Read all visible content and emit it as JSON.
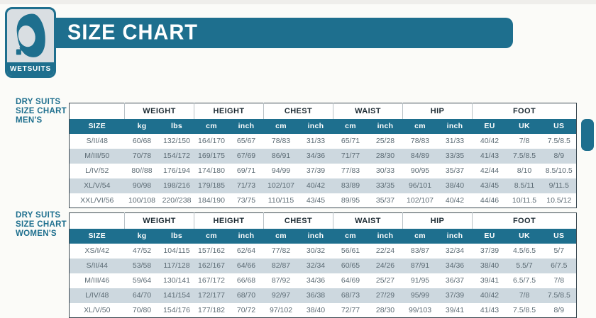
{
  "header": {
    "title": "SIZE CHART",
    "logo_label": "WETSUITS",
    "logo_icon": "wetsuit-hood-icon"
  },
  "colors": {
    "teal": "#1e6f8e",
    "row_alt": "#cdd8df",
    "data_text": "#5c6b74",
    "background": "#fbfbf8"
  },
  "tables": [
    {
      "id": "mens",
      "section_label_lines": [
        "DRY SUITS",
        "SIZE CHART",
        "MEN'S"
      ],
      "column_groups": [
        {
          "label": "",
          "span": 1
        },
        {
          "label": "WEIGHT",
          "span": 2
        },
        {
          "label": "HEIGHT",
          "span": 2
        },
        {
          "label": "CHEST",
          "span": 2
        },
        {
          "label": "WAIST",
          "span": 2
        },
        {
          "label": "HIP",
          "span": 2
        },
        {
          "label": "FOOT",
          "span": 3
        }
      ],
      "columns": [
        "SIZE",
        "kg",
        "lbs",
        "cm",
        "inch",
        "cm",
        "inch",
        "cm",
        "inch",
        "cm",
        "inch",
        "EU",
        "UK",
        "US"
      ],
      "rows": [
        [
          "S/II/48",
          "60/68",
          "132/150",
          "164/170",
          "65/67",
          "78/83",
          "31/33",
          "65/71",
          "25/28",
          "78/83",
          "31/33",
          "40/42",
          "7/8",
          "7.5/8.5"
        ],
        [
          "M/III/50",
          "70/78",
          "154/172",
          "169/175",
          "67/69",
          "86/91",
          "34/36",
          "71/77",
          "28/30",
          "84/89",
          "33/35",
          "41/43",
          "7.5/8.5",
          "8/9"
        ],
        [
          "L/IV/52",
          "80//88",
          "176/194",
          "174/180",
          "69/71",
          "94/99",
          "37/39",
          "77/83",
          "30/33",
          "90/95",
          "35/37",
          "42/44",
          "8/10",
          "8.5/10.5"
        ],
        [
          "XL/V/54",
          "90/98",
          "198/216",
          "179/185",
          "71/73",
          "102/107",
          "40/42",
          "83/89",
          "33/35",
          "96/101",
          "38/40",
          "43/45",
          "8.5/11",
          "9/11.5"
        ],
        [
          "XXL/VI/56",
          "100/108",
          "220//238",
          "184/190",
          "73/75",
          "110/115",
          "43/45",
          "89/95",
          "35/37",
          "102/107",
          "40/42",
          "44/46",
          "10/11.5",
          "10.5/12"
        ]
      ]
    },
    {
      "id": "womens",
      "section_label_lines": [
        "DRY SUITS",
        "SIZE CHART",
        "WOMEN'S"
      ],
      "column_groups": [
        {
          "label": "",
          "span": 1
        },
        {
          "label": "WEIGHT",
          "span": 2
        },
        {
          "label": "HEIGHT",
          "span": 2
        },
        {
          "label": "CHEST",
          "span": 2
        },
        {
          "label": "WAIST",
          "span": 2
        },
        {
          "label": "HIP",
          "span": 2
        },
        {
          "label": "FOOT",
          "span": 3
        }
      ],
      "columns": [
        "SIZE",
        "kg",
        "lbs",
        "cm",
        "inch",
        "cm",
        "inch",
        "cm",
        "inch",
        "cm",
        "inch",
        "EU",
        "UK",
        "US"
      ],
      "rows": [
        [
          "XS/I/42",
          "47/52",
          "104/115",
          "157/162",
          "62/64",
          "77/82",
          "30/32",
          "56/61",
          "22/24",
          "83/87",
          "32/34",
          "37/39",
          "4.5/6.5",
          "5/7"
        ],
        [
          "S/II/44",
          "53/58",
          "117/128",
          "162/167",
          "64/66",
          "82/87",
          "32/34",
          "60/65",
          "24/26",
          "87/91",
          "34/36",
          "38/40",
          "5.5/7",
          "6/7.5"
        ],
        [
          "M/III/46",
          "59/64",
          "130/141",
          "167/172",
          "66/68",
          "87/92",
          "34/36",
          "64/69",
          "25/27",
          "91/95",
          "36/37",
          "39/41",
          "6.5/7.5",
          "7/8"
        ],
        [
          "L/IV/48",
          "64/70",
          "141/154",
          "172/177",
          "68/70",
          "92/97",
          "36/38",
          "68/73",
          "27/29",
          "95/99",
          "37/39",
          "40/42",
          "7/8",
          "7.5/8.5"
        ],
        [
          "XL/V/50",
          "70/80",
          "154/176",
          "177/182",
          "70/72",
          "97/102",
          "38/40",
          "72/77",
          "28/30",
          "99/103",
          "39/41",
          "41/43",
          "7.5/8.5",
          "8/9"
        ]
      ]
    }
  ]
}
